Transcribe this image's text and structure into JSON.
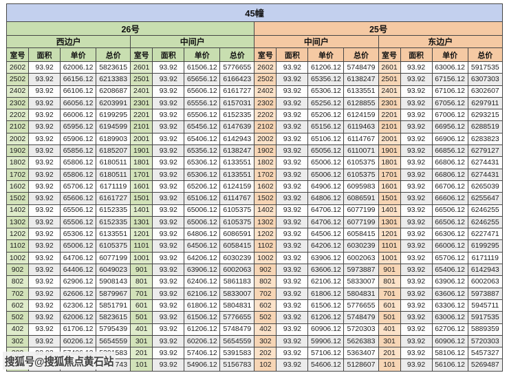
{
  "title": "45幢",
  "watermark": "搜狐号@搜狐焦点黄石站",
  "columns": [
    "室号",
    "面积",
    "单价",
    "总价"
  ],
  "colors": {
    "header_blue": "#c3d0ee",
    "section_green": "#c8deb0",
    "section_orange": "#f5c9a3",
    "row_alt_gray": "#ececec",
    "border": "#444444"
  },
  "sections": [
    {
      "label": "26号",
      "theme": "green",
      "groups": [
        {
          "label": "西边户",
          "rows": [
            [
              "2602",
              "93.92",
              "62006.12",
              "5823615"
            ],
            [
              "2502",
              "93.92",
              "66156.12",
              "6213383"
            ],
            [
              "2402",
              "93.92",
              "66106.12",
              "6208687"
            ],
            [
              "2302",
              "93.92",
              "66056.12",
              "6203991"
            ],
            [
              "2202",
              "93.92",
              "66006.12",
              "6199295"
            ],
            [
              "2102",
              "93.92",
              "65956.12",
              "6194599"
            ],
            [
              "2002",
              "93.92",
              "65906.12",
              "6189903"
            ],
            [
              "1902",
              "93.92",
              "65856.12",
              "6185207"
            ],
            [
              "1802",
              "93.92",
              "65806.12",
              "6180511"
            ],
            [
              "1702",
              "93.92",
              "65806.12",
              "6180511"
            ],
            [
              "1602",
              "93.92",
              "65706.12",
              "6171119"
            ],
            [
              "1502",
              "93.92",
              "65606.12",
              "6161727"
            ],
            [
              "1402",
              "93.92",
              "65506.12",
              "6152335"
            ],
            [
              "1302",
              "93.92",
              "65506.12",
              "6152335"
            ],
            [
              "1202",
              "93.92",
              "65306.12",
              "6133551"
            ],
            [
              "1102",
              "93.92",
              "65006.12",
              "6105375"
            ],
            [
              "1002",
              "93.92",
              "64706.12",
              "6077199"
            ],
            [
              "902",
              "93.92",
              "64406.12",
              "6049023"
            ],
            [
              "802",
              "93.92",
              "62906.12",
              "5908143"
            ],
            [
              "702",
              "93.92",
              "62606.12",
              "5879967"
            ],
            [
              "602",
              "93.92",
              "62306.12",
              "5851791"
            ],
            [
              "502",
              "93.92",
              "62006.12",
              "5823615"
            ],
            [
              "402",
              "93.92",
              "61706.12",
              "5795439"
            ],
            [
              "302",
              "93.92",
              "60206.12",
              "5654559"
            ],
            [
              "202",
              "93.92",
              "57406.12",
              "5391583"
            ],
            [
              "102",
              "93.92",
              "55406.12",
              "5203743"
            ]
          ]
        },
        {
          "label": "中间户",
          "rows": [
            [
              "2601",
              "93.92",
              "61506.12",
              "5776655"
            ],
            [
              "2501",
              "93.92",
              "65656.12",
              "6166423"
            ],
            [
              "2401",
              "93.92",
              "65606.12",
              "6161727"
            ],
            [
              "2301",
              "93.92",
              "65556.12",
              "6157031"
            ],
            [
              "2201",
              "93.92",
              "65506.12",
              "6152335"
            ],
            [
              "2101",
              "93.92",
              "65456.12",
              "6147639"
            ],
            [
              "2001",
              "93.92",
              "65406.12",
              "6142943"
            ],
            [
              "1901",
              "93.92",
              "65356.12",
              "6138247"
            ],
            [
              "1801",
              "93.92",
              "65306.12",
              "6133551"
            ],
            [
              "1701",
              "93.92",
              "65306.12",
              "6133551"
            ],
            [
              "1601",
              "93.92",
              "65206.12",
              "6124159"
            ],
            [
              "1501",
              "93.92",
              "65106.12",
              "6114767"
            ],
            [
              "1401",
              "93.92",
              "65006.12",
              "6105375"
            ],
            [
              "1301",
              "93.92",
              "65006.12",
              "6105375"
            ],
            [
              "1201",
              "93.92",
              "64806.12",
              "6086591"
            ],
            [
              "1101",
              "93.92",
              "64506.12",
              "6058415"
            ],
            [
              "1001",
              "93.92",
              "64206.12",
              "6030239"
            ],
            [
              "901",
              "93.92",
              "63906.12",
              "6002063"
            ],
            [
              "801",
              "93.92",
              "62406.12",
              "5861183"
            ],
            [
              "701",
              "93.92",
              "62106.12",
              "5833007"
            ],
            [
              "601",
              "93.92",
              "61806.12",
              "5804831"
            ],
            [
              "501",
              "93.92",
              "61506.12",
              "5776655"
            ],
            [
              "401",
              "93.92",
              "61206.12",
              "5748479"
            ],
            [
              "301",
              "93.92",
              "60206.12",
              "5654559"
            ],
            [
              "201",
              "93.92",
              "57406.12",
              "5391583"
            ],
            [
              "101",
              "93.92",
              "54906.12",
              "5156783"
            ]
          ]
        }
      ]
    },
    {
      "label": "25号",
      "theme": "orange",
      "groups": [
        {
          "label": "中间户",
          "rows": [
            [
              "2602",
              "93.92",
              "61206.12",
              "5748479"
            ],
            [
              "2502",
              "93.92",
              "65356.12",
              "6138247"
            ],
            [
              "2402",
              "93.92",
              "65306.12",
              "6133551"
            ],
            [
              "2302",
              "93.92",
              "65256.12",
              "6128855"
            ],
            [
              "2202",
              "93.92",
              "65206.12",
              "6124159"
            ],
            [
              "2102",
              "93.92",
              "65156.12",
              "6119463"
            ],
            [
              "2002",
              "93.92",
              "65106.12",
              "6114767"
            ],
            [
              "1902",
              "93.92",
              "65056.12",
              "6110071"
            ],
            [
              "1802",
              "93.92",
              "65006.12",
              "6105375"
            ],
            [
              "1702",
              "93.92",
              "65006.12",
              "6105375"
            ],
            [
              "1602",
              "93.92",
              "64906.12",
              "6095983"
            ],
            [
              "1502",
              "93.92",
              "64806.12",
              "6086591"
            ],
            [
              "1402",
              "93.92",
              "64706.12",
              "6077199"
            ],
            [
              "1302",
              "93.92",
              "64706.12",
              "6077199"
            ],
            [
              "1202",
              "93.92",
              "64506.12",
              "6058415"
            ],
            [
              "1102",
              "93.92",
              "64206.12",
              "6030239"
            ],
            [
              "1002",
              "93.92",
              "63906.12",
              "6002063"
            ],
            [
              "902",
              "93.92",
              "63606.12",
              "5973887"
            ],
            [
              "802",
              "93.92",
              "62106.12",
              "5833007"
            ],
            [
              "702",
              "93.92",
              "61806.12",
              "5804831"
            ],
            [
              "602",
              "93.92",
              "61506.12",
              "5776655"
            ],
            [
              "502",
              "93.92",
              "61206.12",
              "5748479"
            ],
            [
              "402",
              "93.92",
              "60906.12",
              "5720303"
            ],
            [
              "302",
              "93.92",
              "59906.12",
              "5626383"
            ],
            [
              "202",
              "93.92",
              "57106.12",
              "5363407"
            ],
            [
              "102",
              "93.92",
              "54606.12",
              "5128607"
            ]
          ]
        },
        {
          "label": "东边户",
          "rows": [
            [
              "2601",
              "93.92",
              "63006.12",
              "5917535"
            ],
            [
              "2501",
              "93.92",
              "67156.12",
              "6307303"
            ],
            [
              "2401",
              "93.92",
              "67106.12",
              "6302607"
            ],
            [
              "2301",
              "93.92",
              "67056.12",
              "6297911"
            ],
            [
              "2201",
              "93.92",
              "67006.12",
              "6293215"
            ],
            [
              "2101",
              "93.92",
              "66956.12",
              "6288519"
            ],
            [
              "2001",
              "93.92",
              "66906.12",
              "6283823"
            ],
            [
              "1901",
              "93.92",
              "66856.12",
              "6279127"
            ],
            [
              "1801",
              "93.92",
              "66806.12",
              "6274431"
            ],
            [
              "1701",
              "93.92",
              "66806.12",
              "6274431"
            ],
            [
              "1601",
              "93.92",
              "66706.12",
              "6265039"
            ],
            [
              "1501",
              "93.92",
              "66606.12",
              "6255647"
            ],
            [
              "1401",
              "93.92",
              "66506.12",
              "6246255"
            ],
            [
              "1301",
              "93.92",
              "66506.12",
              "6246255"
            ],
            [
              "1201",
              "93.92",
              "66306.12",
              "6227471"
            ],
            [
              "1101",
              "93.92",
              "66006.12",
              "6199295"
            ],
            [
              "1001",
              "93.92",
              "65706.12",
              "6171119"
            ],
            [
              "901",
              "93.92",
              "65406.12",
              "6142943"
            ],
            [
              "801",
              "93.92",
              "63906.12",
              "6002063"
            ],
            [
              "701",
              "93.92",
              "63606.12",
              "5973887"
            ],
            [
              "601",
              "93.92",
              "63306.12",
              "5945711"
            ],
            [
              "501",
              "93.92",
              "63006.12",
              "5917535"
            ],
            [
              "401",
              "93.92",
              "62706.12",
              "5889359"
            ],
            [
              "301",
              "93.92",
              "60906.12",
              "5720303"
            ],
            [
              "201",
              "93.92",
              "58106.12",
              "5457327"
            ],
            [
              "101",
              "93.92",
              "56106.12",
              "5269487"
            ]
          ]
        }
      ]
    }
  ]
}
